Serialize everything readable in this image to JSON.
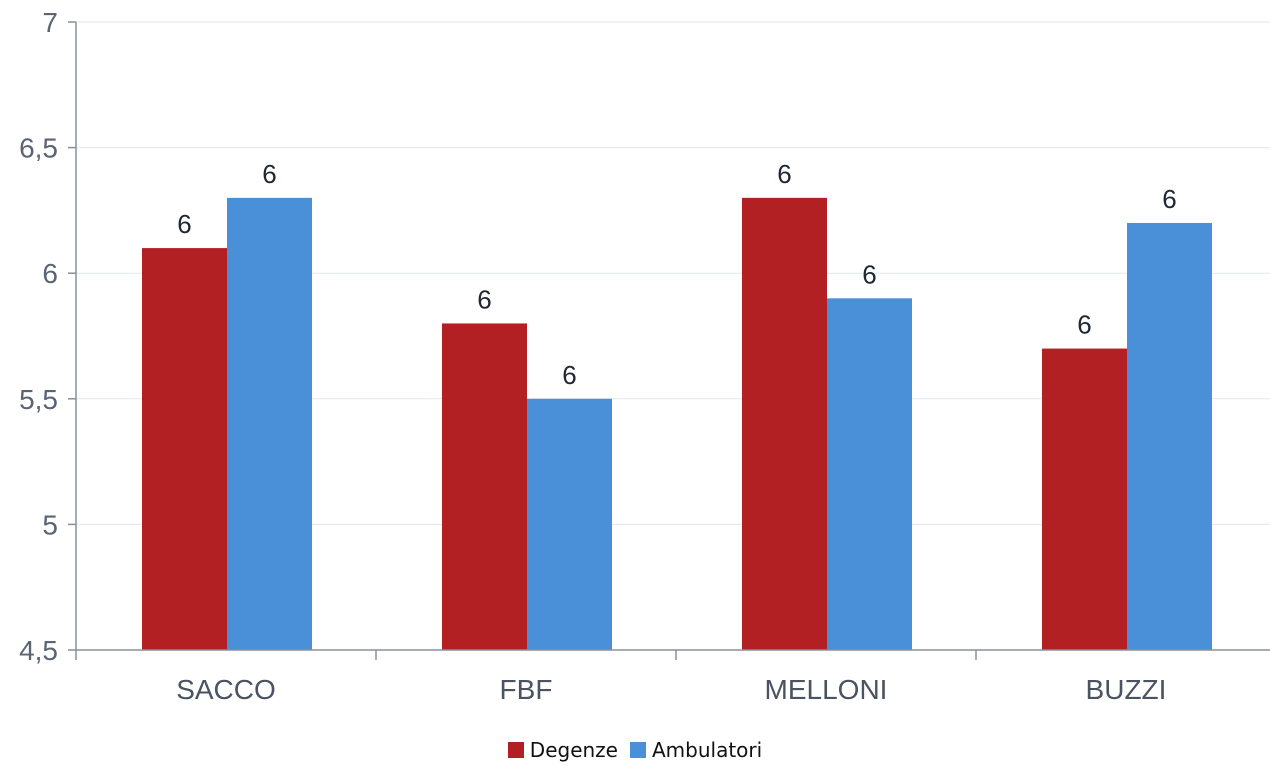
{
  "chart_data": {
    "type": "bar",
    "categories": [
      "SACCO",
      "FBF",
      "MELLONI",
      "BUZZI"
    ],
    "series": [
      {
        "name": "Degenze",
        "values": [
          6.1,
          5.8,
          6.3,
          5.7
        ],
        "color": "#b32024",
        "labels": [
          "6",
          "6",
          "6",
          "6"
        ]
      },
      {
        "name": "Ambulatori",
        "values": [
          6.3,
          5.5,
          5.9,
          6.2
        ],
        "color": "#4a90d9",
        "labels": [
          "6",
          "6",
          "6",
          "6"
        ]
      }
    ],
    "ylim": [
      4.5,
      7
    ],
    "yticks": [
      "4,5",
      "5",
      "5,5",
      "6",
      "6,5",
      "7"
    ],
    "ytick_values": [
      4.5,
      5,
      5.5,
      6,
      6.5,
      7
    ],
    "title": "",
    "xlabel": "",
    "ylabel": "",
    "grid": true,
    "legend_position": "bottom"
  }
}
